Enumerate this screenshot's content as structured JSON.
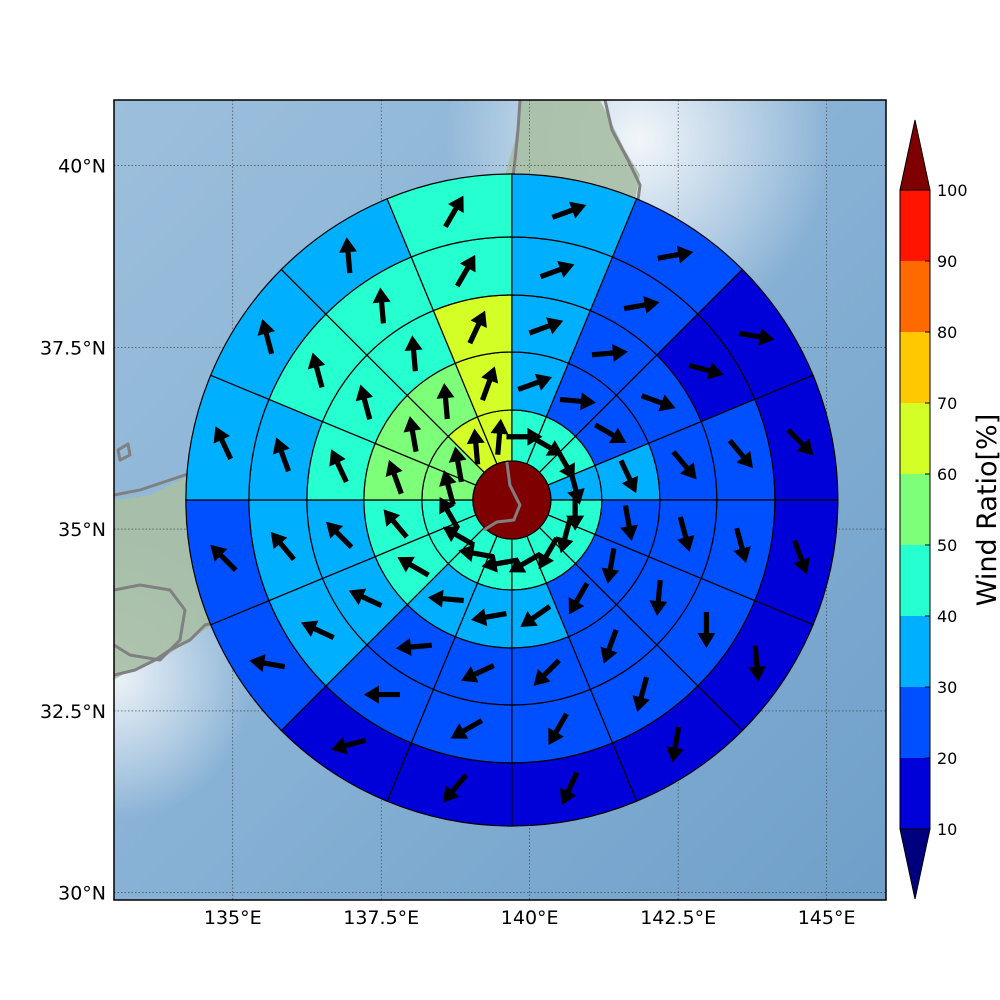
{
  "map": {
    "lon_range": [
      133.0,
      146.0
    ],
    "lat_range": [
      29.9,
      40.9
    ],
    "lon_ticks": [
      {
        "value": 135.0,
        "label": "135°E"
      },
      {
        "value": 137.5,
        "label": "137.5°E"
      },
      {
        "value": 140.0,
        "label": "140°E"
      },
      {
        "value": 142.5,
        "label": "142.5°E"
      },
      {
        "value": 145.0,
        "label": "145°E"
      }
    ],
    "lat_ticks": [
      {
        "value": 30.0,
        "label": "30°N"
      },
      {
        "value": 32.5,
        "label": "32.5°N"
      },
      {
        "value": 35.0,
        "label": "35°N"
      },
      {
        "value": 37.5,
        "label": "37.5°N"
      },
      {
        "value": 40.0,
        "label": "40°N"
      }
    ],
    "grid": true,
    "background": "shaded relief with gray coastlines"
  },
  "colorbar": {
    "label": "Wind Ratio[%]",
    "ticks": [
      "10",
      "20",
      "30",
      "40",
      "50",
      "60",
      "70",
      "80",
      "90",
      "100"
    ],
    "colors": [
      "#0000d8",
      "#0050ff",
      "#00b0ff",
      "#26ffd0",
      "#7dff7a",
      "#d3ff26",
      "#ffc800",
      "#ff6a00",
      "#ff1400"
    ],
    "under_color": "#00007f",
    "over_color": "#7f0000",
    "extend": "both"
  },
  "chart_data": {
    "type": "polar-sector wind map",
    "center": {
      "lon": 139.7,
      "lat": 35.4
    },
    "rings": 5,
    "sectors_per_ring": 16,
    "center_value_bin": "over 100",
    "ring_bins": [
      [
        40,
        40,
        40,
        30,
        40,
        40,
        40,
        40,
        40,
        40,
        40,
        40,
        50,
        50,
        60,
        60
      ],
      [
        30,
        20,
        20,
        30,
        20,
        20,
        20,
        30,
        30,
        30,
        40,
        40,
        50,
        50,
        50,
        60
      ],
      [
        30,
        20,
        20,
        20,
        20,
        20,
        20,
        20,
        20,
        20,
        30,
        30,
        40,
        40,
        40,
        60
      ],
      [
        30,
        20,
        10,
        20,
        20,
        20,
        20,
        20,
        20,
        20,
        30,
        30,
        30,
        40,
        40,
        40
      ],
      [
        30,
        20,
        10,
        10,
        10,
        10,
        10,
        10,
        10,
        10,
        20,
        20,
        30,
        30,
        30,
        40
      ]
    ],
    "arrow_directions_deg": [
      [
        90,
        120,
        150,
        165,
        180,
        195,
        210,
        240,
        260,
        280,
        300,
        330,
        345,
        350,
        355,
        5
      ],
      [
        70,
        95,
        120,
        155,
        170,
        190,
        210,
        235,
        260,
        275,
        300,
        320,
        340,
        350,
        355,
        20
      ],
      [
        70,
        85,
        110,
        140,
        165,
        185,
        200,
        225,
        245,
        265,
        295,
        315,
        335,
        345,
        355,
        25
      ],
      [
        70,
        80,
        105,
        140,
        165,
        180,
        195,
        210,
        240,
        270,
        295,
        320,
        340,
        345,
        355,
        30
      ],
      [
        70,
        80,
        100,
        135,
        160,
        175,
        190,
        205,
        220,
        255,
        280,
        315,
        335,
        345,
        355,
        30
      ]
    ]
  }
}
